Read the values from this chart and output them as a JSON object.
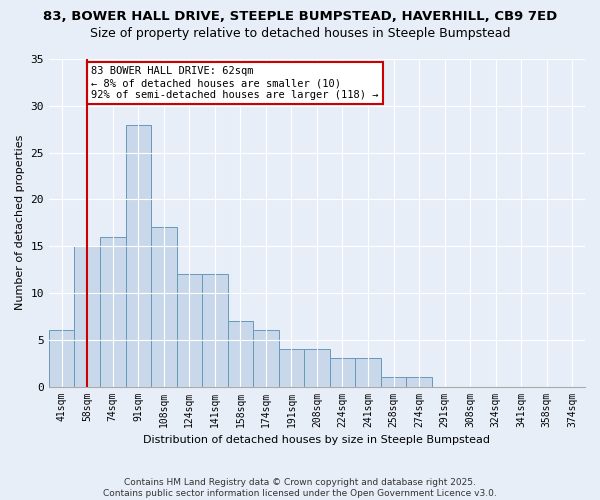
{
  "title1": "83, BOWER HALL DRIVE, STEEPLE BUMPSTEAD, HAVERHILL, CB9 7ED",
  "title2": "Size of property relative to detached houses in Steeple Bumpstead",
  "xlabel": "Distribution of detached houses by size in Steeple Bumpstead",
  "ylabel": "Number of detached properties",
  "categories": [
    "41sqm",
    "58sqm",
    "74sqm",
    "91sqm",
    "108sqm",
    "124sqm",
    "141sqm",
    "158sqm",
    "174sqm",
    "191sqm",
    "208sqm",
    "224sqm",
    "241sqm",
    "258sqm",
    "274sqm",
    "291sqm",
    "308sqm",
    "324sqm",
    "341sqm",
    "358sqm",
    "374sqm"
  ],
  "values": [
    6,
    15,
    16,
    28,
    17,
    12,
    12,
    7,
    6,
    4,
    4,
    3,
    3,
    1,
    1,
    0,
    0,
    0,
    0,
    0,
    0
  ],
  "bar_color": "#c8d8ea",
  "bar_edge_color": "#6699bb",
  "vline_x": 1,
  "vline_color": "#cc0000",
  "annotation_text": "83 BOWER HALL DRIVE: 62sqm\n← 8% of detached houses are smaller (10)\n92% of semi-detached houses are larger (118) →",
  "annotation_box_color": "#ffffff",
  "annotation_box_edge": "#cc0000",
  "ylim": [
    0,
    35
  ],
  "yticks": [
    0,
    5,
    10,
    15,
    20,
    25,
    30,
    35
  ],
  "bg_color": "#e8eef8",
  "footer": "Contains HM Land Registry data © Crown copyright and database right 2025.\nContains public sector information licensed under the Open Government Licence v3.0.",
  "title_fontsize": 9.5,
  "subtitle_fontsize": 9
}
